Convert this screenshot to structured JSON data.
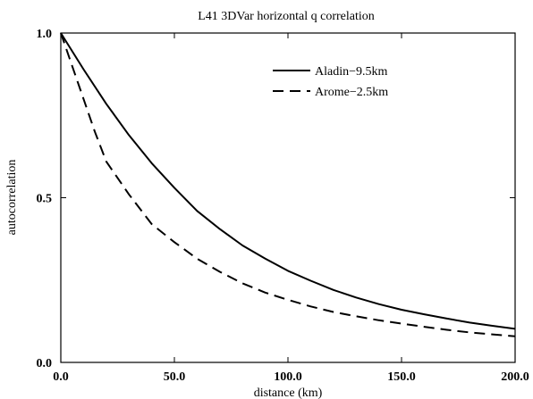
{
  "chart_data": {
    "type": "line",
    "title": "L41 3DVar horizontal q correlation",
    "xlabel": "distance (km)",
    "ylabel": "autocorrelation",
    "xlim": [
      0,
      200
    ],
    "ylim": [
      0,
      1
    ],
    "x_ticks": [
      0,
      50,
      100,
      150,
      200
    ],
    "x_tick_labels": [
      "0.0",
      "50.0",
      "100.0",
      "150.0",
      "200.0"
    ],
    "y_ticks": [
      0,
      0.5,
      1
    ],
    "y_tick_labels": [
      "0.0",
      "0.5",
      "1.0"
    ],
    "grid": false,
    "legend_position": "top-right",
    "series": [
      {
        "name": "Aladin−9.5km",
        "style": "solid",
        "x": [
          0,
          10,
          20,
          30,
          40,
          50,
          60,
          70,
          80,
          90,
          100,
          110,
          120,
          130,
          140,
          150,
          160,
          170,
          180,
          190,
          200
        ],
        "values": [
          1.0,
          0.89,
          0.785,
          0.69,
          0.605,
          0.53,
          0.46,
          0.405,
          0.355,
          0.315,
          0.278,
          0.248,
          0.22,
          0.197,
          0.177,
          0.16,
          0.146,
          0.133,
          0.121,
          0.111,
          0.102
        ]
      },
      {
        "name": "Arome−2.5km",
        "style": "dashed",
        "x": [
          0,
          5,
          10,
          15,
          20,
          30,
          40,
          50,
          60,
          70,
          80,
          90,
          100,
          110,
          120,
          130,
          140,
          150,
          160,
          170,
          180,
          190,
          200
        ],
        "values": [
          1.0,
          0.9,
          0.8,
          0.7,
          0.61,
          0.51,
          0.42,
          0.365,
          0.315,
          0.275,
          0.24,
          0.212,
          0.19,
          0.17,
          0.153,
          0.14,
          0.128,
          0.118,
          0.108,
          0.099,
          0.091,
          0.085,
          0.079
        ]
      }
    ]
  }
}
